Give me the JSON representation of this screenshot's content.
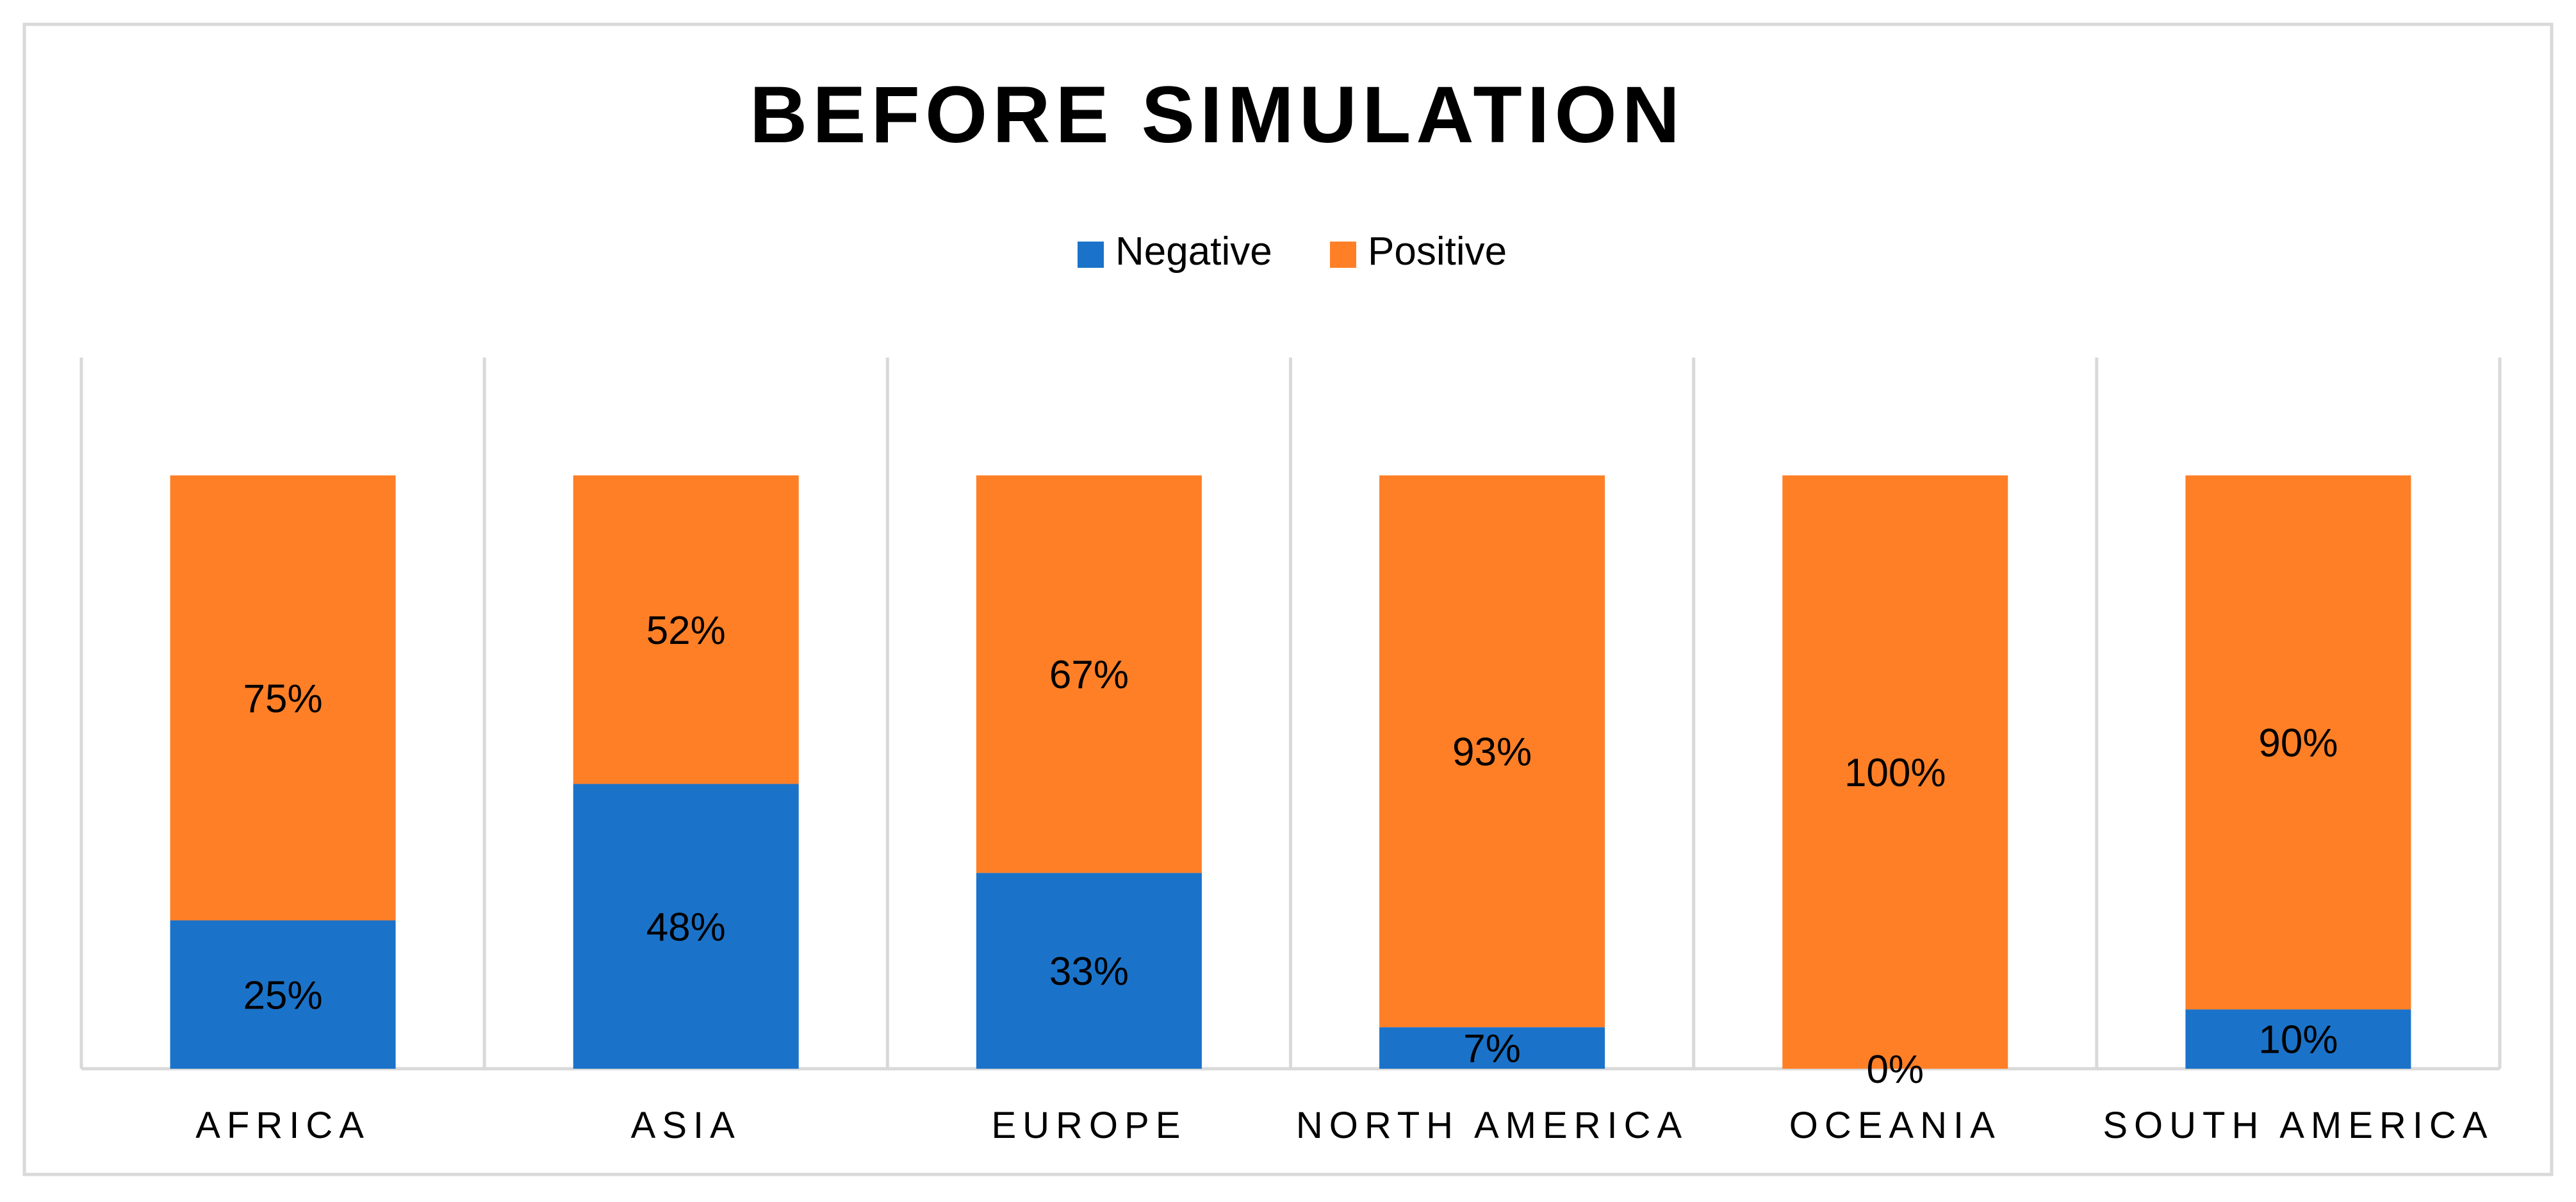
{
  "chart_data": {
    "type": "bar",
    "stacked": true,
    "title": "BEFORE SIMULATION",
    "xlabel": "",
    "ylabel": "",
    "ylim": [
      0,
      100
    ],
    "legend_position": "top-center",
    "grid": "vertical-category-separators",
    "categories": [
      "AFRICA",
      "ASIA",
      "EUROPE",
      "NORTH AMERICA",
      "OCEANIA",
      "SOUTH AMERICA"
    ],
    "series": [
      {
        "name": "Negative",
        "color": "#1B73C9",
        "values": [
          25,
          48,
          33,
          7,
          0,
          10
        ],
        "labels": [
          "25%",
          "48%",
          "33%",
          "7%",
          "0%",
          "10%"
        ]
      },
      {
        "name": "Positive",
        "color": "#FF7F27",
        "values": [
          75,
          52,
          67,
          93,
          100,
          90
        ],
        "labels": [
          "75%",
          "52%",
          "67%",
          "93%",
          "100%",
          "90%"
        ]
      }
    ]
  }
}
